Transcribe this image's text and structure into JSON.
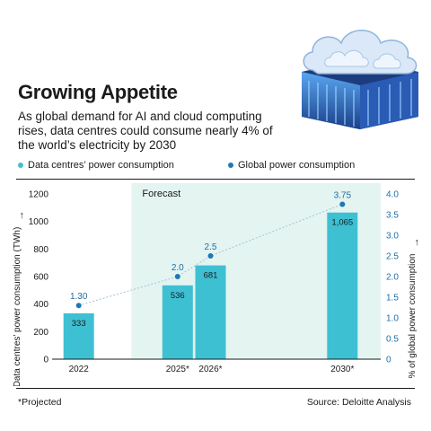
{
  "header": {
    "title": "Growing Appetite",
    "subtitle": "As global demand for AI and cloud computing rises, data centres could consume nearly 4% of the world’s electricity by 2030"
  },
  "legend": {
    "bars": "Data centres’ power consumption",
    "dots": "Global power consumption"
  },
  "colors": {
    "bar": "#3ec0d3",
    "dot": "#1f78b4",
    "forecast_bg": "#e4f4f1",
    "label": "#1f6fa6"
  },
  "footer": {
    "note": "*Projected",
    "source": "Source: Deloitte Analysis"
  },
  "chart_data": {
    "type": "bar",
    "forecast_label": "Forecast",
    "categories": [
      "2022",
      "2025*",
      "2026*",
      "2030*"
    ],
    "x_years": [
      2022,
      2025,
      2026,
      2030
    ],
    "x_range": [
      2021.3,
      2031.0
    ],
    "forecast_start_year": 2023.6,
    "series": [
      {
        "name": "Data centres’ power consumption",
        "axis": "left",
        "values": [
          333,
          536,
          681,
          1065
        ]
      },
      {
        "name": "Global power consumption",
        "axis": "right",
        "values": [
          1.3,
          2.0,
          2.5,
          3.75
        ]
      }
    ],
    "bar_labels": [
      "333",
      "536",
      "681",
      "1,065"
    ],
    "dot_labels": [
      "1.30",
      "2.0",
      "2.5",
      "3.75"
    ],
    "ylabel": "Data centres’ power consumption (TWh)",
    "ylim": [
      0,
      1200
    ],
    "yticks": [
      "0",
      "200",
      "400",
      "600",
      "800",
      "1000",
      "1200"
    ],
    "y2label": "% of global power consumption",
    "y2lim": [
      0,
      4.0
    ],
    "y2ticks": [
      "0",
      "0.5",
      "1.0",
      "1.5",
      "2.0",
      "2.5",
      "3.0",
      "3.5",
      "4.0"
    ],
    "grid": false,
    "trend_line": "dashed"
  }
}
